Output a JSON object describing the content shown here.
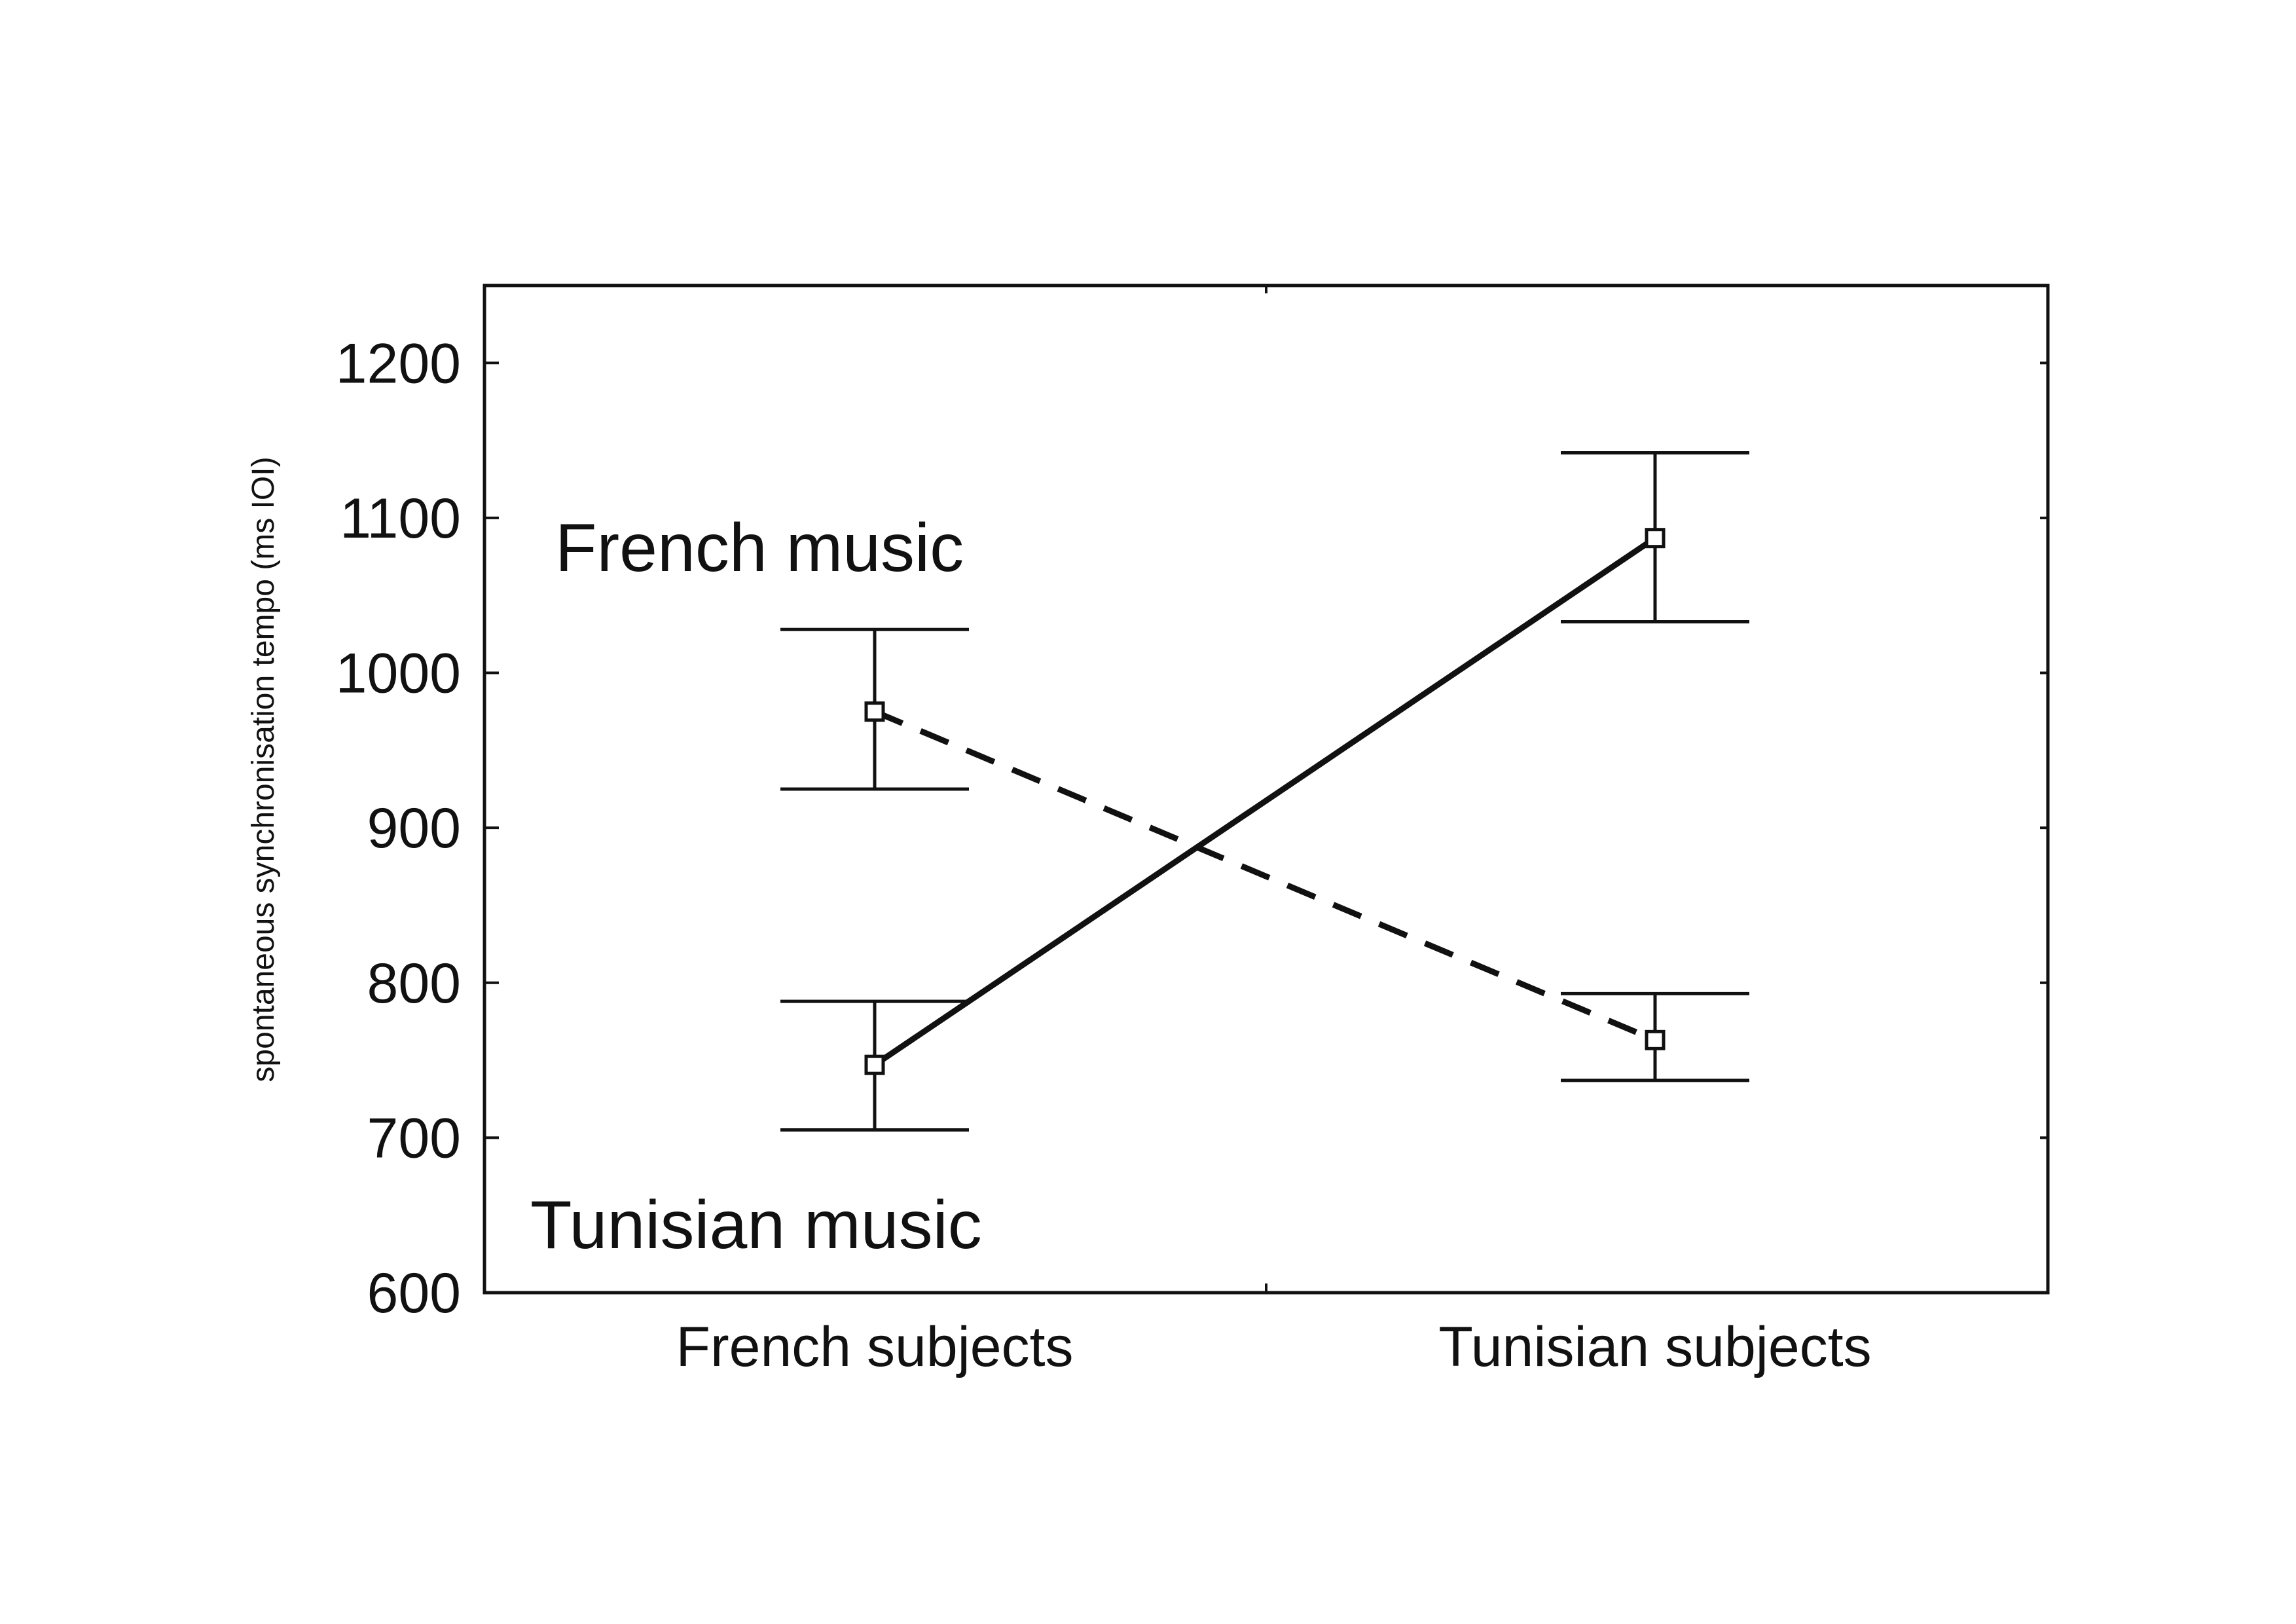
{
  "chart_data": {
    "type": "line",
    "categories": [
      "French subjects",
      "Tunisian subjects"
    ],
    "ylabel": "spontaneous synchronisation tempo (ms IOI)",
    "ylim": [
      600,
      1250
    ],
    "yticks": [
      600,
      700,
      800,
      900,
      1000,
      1100,
      1200
    ],
    "grid": false,
    "series": [
      {
        "name": "French music",
        "line_style": "dashed",
        "values": [
          975,
          763
        ],
        "error_low": [
          925,
          737
        ],
        "error_high": [
          1028,
          793
        ]
      },
      {
        "name": "Tunisian music",
        "line_style": "solid",
        "values": [
          747,
          1087
        ],
        "error_low": [
          705,
          1033
        ],
        "error_high": [
          788,
          1142
        ]
      }
    ]
  },
  "annotations": [
    "French music",
    "Tunisian music"
  ],
  "colors": {
    "line": "#111111",
    "marker_fill": "#ffffff",
    "background": "#ffffff"
  }
}
